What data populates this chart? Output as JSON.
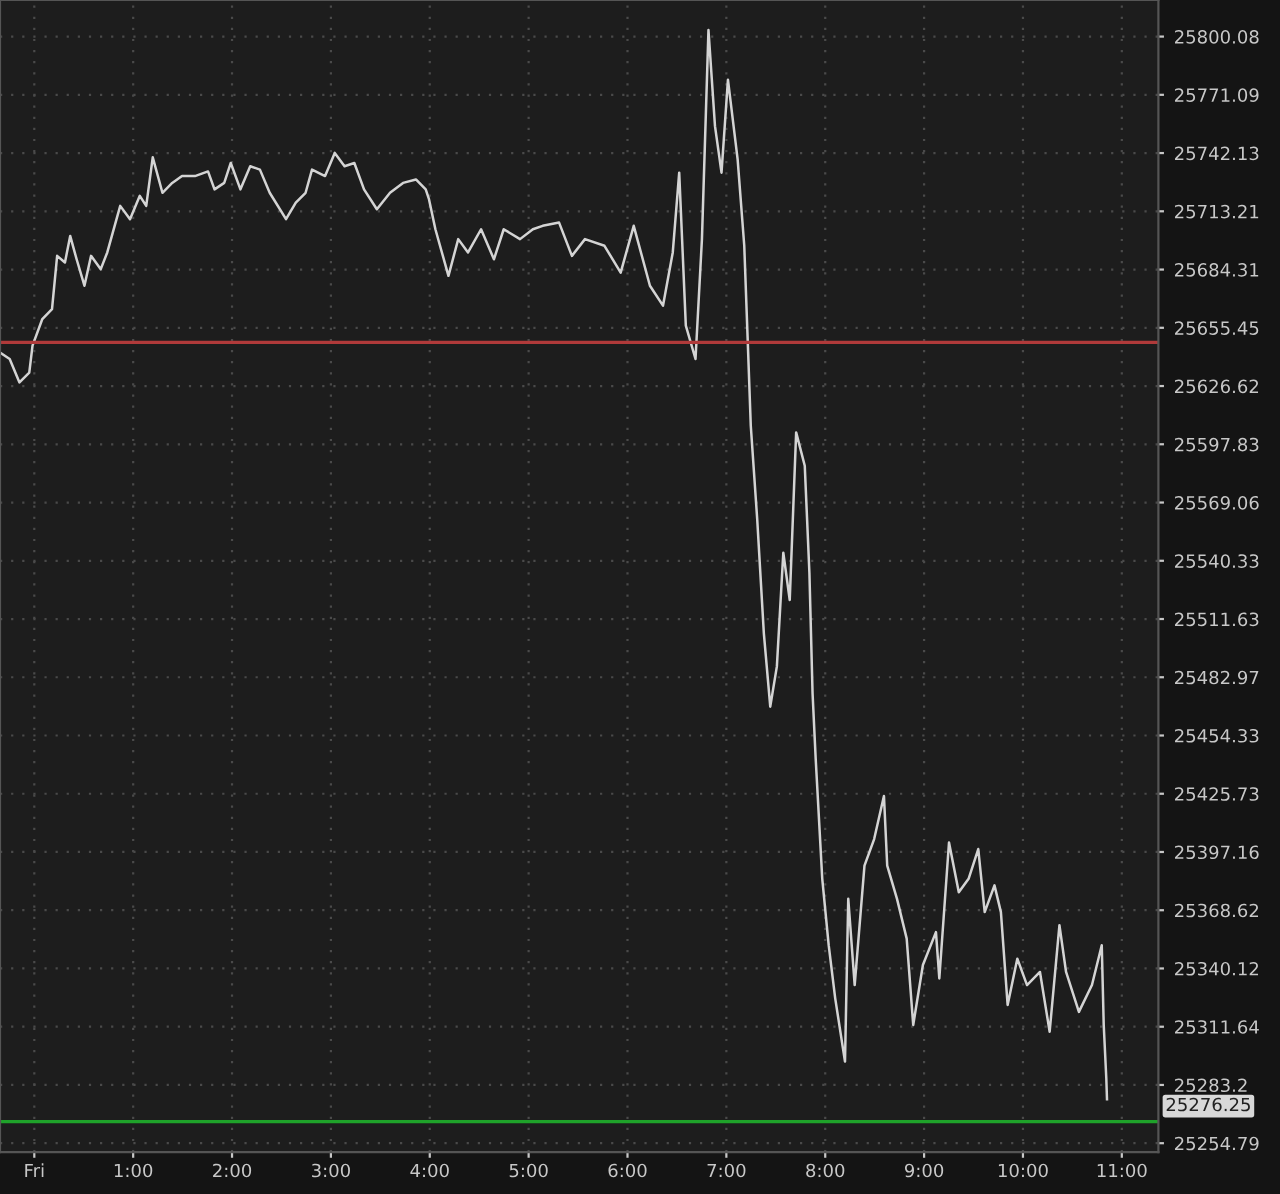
{
  "chart_data": {
    "type": "line",
    "x": [
      -0.347,
      -0.249,
      -0.15,
      -0.051,
      -0.018,
      0.081,
      0.179,
      0.231,
      0.31,
      0.363,
      0.428,
      0.507,
      0.574,
      0.672,
      0.738,
      0.869,
      0.968,
      1.067,
      1.132,
      1.198,
      1.296,
      1.395,
      1.494,
      1.625,
      1.757,
      1.823,
      1.921,
      1.987,
      2.085,
      2.184,
      2.282,
      2.381,
      2.546,
      2.645,
      2.744,
      2.809,
      2.941,
      3.039,
      3.138,
      3.237,
      3.335,
      3.465,
      3.598,
      3.73,
      3.86,
      3.959,
      3.992,
      4.057,
      4.189,
      4.288,
      4.387,
      4.519,
      4.649,
      4.748,
      4.913,
      5.043,
      5.142,
      5.308,
      5.438,
      5.57,
      5.767,
      5.931,
      6.063,
      6.227,
      6.359,
      6.458,
      6.523,
      6.59,
      6.688,
      6.753,
      6.819,
      6.885,
      6.951,
      7.016,
      7.114,
      7.181,
      7.213,
      7.247,
      7.312,
      7.379,
      7.444,
      7.511,
      7.576,
      7.641,
      7.706,
      7.793,
      7.84,
      7.872,
      7.904,
      7.97,
      8.035,
      8.101,
      8.2,
      8.233,
      8.298,
      8.397,
      8.495,
      8.594,
      8.627,
      8.726,
      8.824,
      8.89,
      8.988,
      9.12,
      9.154,
      9.252,
      9.351,
      9.45,
      9.548,
      9.613,
      9.712,
      9.777,
      9.845,
      9.943,
      10.041,
      10.172,
      10.27,
      10.369,
      10.436,
      10.566,
      10.698,
      10.797,
      10.817,
      10.843,
      10.85
    ],
    "series": [
      {
        "color": "#d4d4d4",
        "values": [
          25643.2,
          25640.0,
          25628.4,
          25633.3,
          25646.6,
          25659.8,
          25664.7,
          25691.1,
          25687.8,
          25701.0,
          25689.4,
          25676.3,
          25691.1,
          25684.5,
          25692.8,
          25715.9,
          25709.3,
          25720.9,
          25715.9,
          25740.0,
          25722.4,
          25727.3,
          25730.7,
          25730.7,
          25733.0,
          25724.1,
          25727.3,
          25737.2,
          25724.1,
          25735.6,
          25733.9,
          25722.4,
          25709.3,
          25717.5,
          25722.4,
          25733.9,
          25730.7,
          25742.2,
          25735.6,
          25737.2,
          25724.1,
          25714.2,
          25722.4,
          25727.3,
          25729.0,
          25724.1,
          25719.2,
          25704.3,
          25681.2,
          25699.4,
          25692.8,
          25704.3,
          25689.4,
          25704.3,
          25699.4,
          25704.3,
          25706.0,
          25707.6,
          25691.1,
          25699.4,
          25696.1,
          25682.8,
          25706.0,
          25676.3,
          25666.4,
          25692.8,
          25732.4,
          25656.5,
          25640.0,
          25699.4,
          25803.3,
          25755.5,
          25732.4,
          25778.6,
          25739.0,
          25696.1,
          25653.2,
          25607.0,
          25560.8,
          25504.7,
          25468.5,
          25488.3,
          25544.3,
          25521.0,
          25603.7,
          25587.2,
          25534.4,
          25475.0,
          25442.5,
          25384.0,
          25351.5,
          25325.5,
          25294.6,
          25374.2,
          25332.0,
          25390.5,
          25403.5,
          25424.6,
          25390.5,
          25374.2,
          25354.7,
          25312.5,
          25341.8,
          25357.9,
          25335.2,
          25401.8,
          25377.4,
          25384.0,
          25398.6,
          25367.7,
          25380.8,
          25367.7,
          25322.3,
          25344.9,
          25332.0,
          25338.4,
          25309.2,
          25361.3,
          25338.4,
          25318.9,
          25332.0,
          25351.5,
          25312.5,
          25286.5,
          25276.25
        ]
      }
    ],
    "log": "y",
    "xlim": [
      -0.347,
      11.37
    ],
    "xticks": [
      {
        "value": 0,
        "label": "Fri"
      },
      {
        "value": 1,
        "label": "1:00"
      },
      {
        "value": 2,
        "label": "2:00"
      },
      {
        "value": 3,
        "label": "3:00"
      },
      {
        "value": 4,
        "label": "4:00"
      },
      {
        "value": 5,
        "label": "5:00"
      },
      {
        "value": 6,
        "label": "6:00"
      },
      {
        "value": 7,
        "label": "7:00"
      },
      {
        "value": 8,
        "label": "8:00"
      },
      {
        "value": 9,
        "label": "9:00"
      },
      {
        "value": 10,
        "label": "10:00"
      },
      {
        "value": 11,
        "label": "11:00"
      }
    ],
    "ylim": [
      25250.4,
      25818.3
    ],
    "yticks": [
      25800.08,
      25771.09,
      25742.13,
      25713.21,
      25684.31,
      25655.45,
      25626.62,
      25597.83,
      25569.06,
      25540.33,
      25511.63,
      25482.97,
      25454.33,
      25425.73,
      25397.16,
      25368.62,
      25340.12,
      25311.64,
      {
        "value": 25283.2,
        "label": "25283.2"
      },
      25254.79
    ],
    "grid": true,
    "ref_lines": [
      {
        "axis": "y",
        "value": 25648.2,
        "color": "#b03a3a"
      },
      {
        "axis": "y",
        "value": 25265.3,
        "color": "#1fa22a"
      }
    ],
    "annotations": [
      "25276.25"
    ],
    "line_style": "solid"
  }
}
